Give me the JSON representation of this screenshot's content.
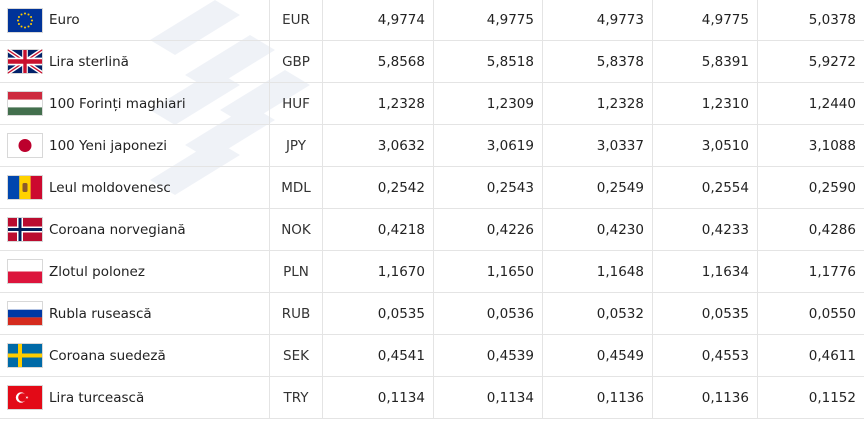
{
  "rates": [
    {
      "flag_icon": "eu-flag-icon",
      "name": "Euro",
      "code": "EUR",
      "values": [
        "4,9774",
        "4,9775",
        "4,9773",
        "4,9775",
        "5,0378"
      ]
    },
    {
      "flag_icon": "uk-flag-icon",
      "name": "Lira sterlină",
      "code": "GBP",
      "values": [
        "5,8568",
        "5,8518",
        "5,8378",
        "5,8391",
        "5,9272"
      ]
    },
    {
      "flag_icon": "hungary-flag-icon",
      "name": "100 Forinți maghiari",
      "code": "HUF",
      "values": [
        "1,2328",
        "1,2309",
        "1,2328",
        "1,2310",
        "1,2440"
      ]
    },
    {
      "flag_icon": "japan-flag-icon",
      "name": "100 Yeni japonezi",
      "code": "JPY",
      "values": [
        "3,0632",
        "3,0619",
        "3,0337",
        "3,0510",
        "3,1088"
      ]
    },
    {
      "flag_icon": "moldova-flag-icon",
      "name": "Leul moldovenesc",
      "code": "MDL",
      "values": [
        "0,2542",
        "0,2543",
        "0,2549",
        "0,2554",
        "0,2590"
      ]
    },
    {
      "flag_icon": "norway-flag-icon",
      "name": "Coroana norvegiană",
      "code": "NOK",
      "values": [
        "0,4218",
        "0,4226",
        "0,4230",
        "0,4233",
        "0,4286"
      ]
    },
    {
      "flag_icon": "poland-flag-icon",
      "name": "Zlotul polonez",
      "code": "PLN",
      "values": [
        "1,1670",
        "1,1650",
        "1,1648",
        "1,1634",
        "1,1776"
      ]
    },
    {
      "flag_icon": "russia-flag-icon",
      "name": "Rubla rusească",
      "code": "RUB",
      "values": [
        "0,0535",
        "0,0536",
        "0,0532",
        "0,0535",
        "0,0550"
      ]
    },
    {
      "flag_icon": "sweden-flag-icon",
      "name": "Coroana suedeză",
      "code": "SEK",
      "values": [
        "0,4541",
        "0,4539",
        "0,4549",
        "0,4553",
        "0,4611"
      ]
    },
    {
      "flag_icon": "turkey-flag-icon",
      "name": "Lira turcească",
      "code": "TRY",
      "values": [
        "0,1134",
        "0,1134",
        "0,1136",
        "0,1136",
        "0,1152"
      ]
    }
  ]
}
